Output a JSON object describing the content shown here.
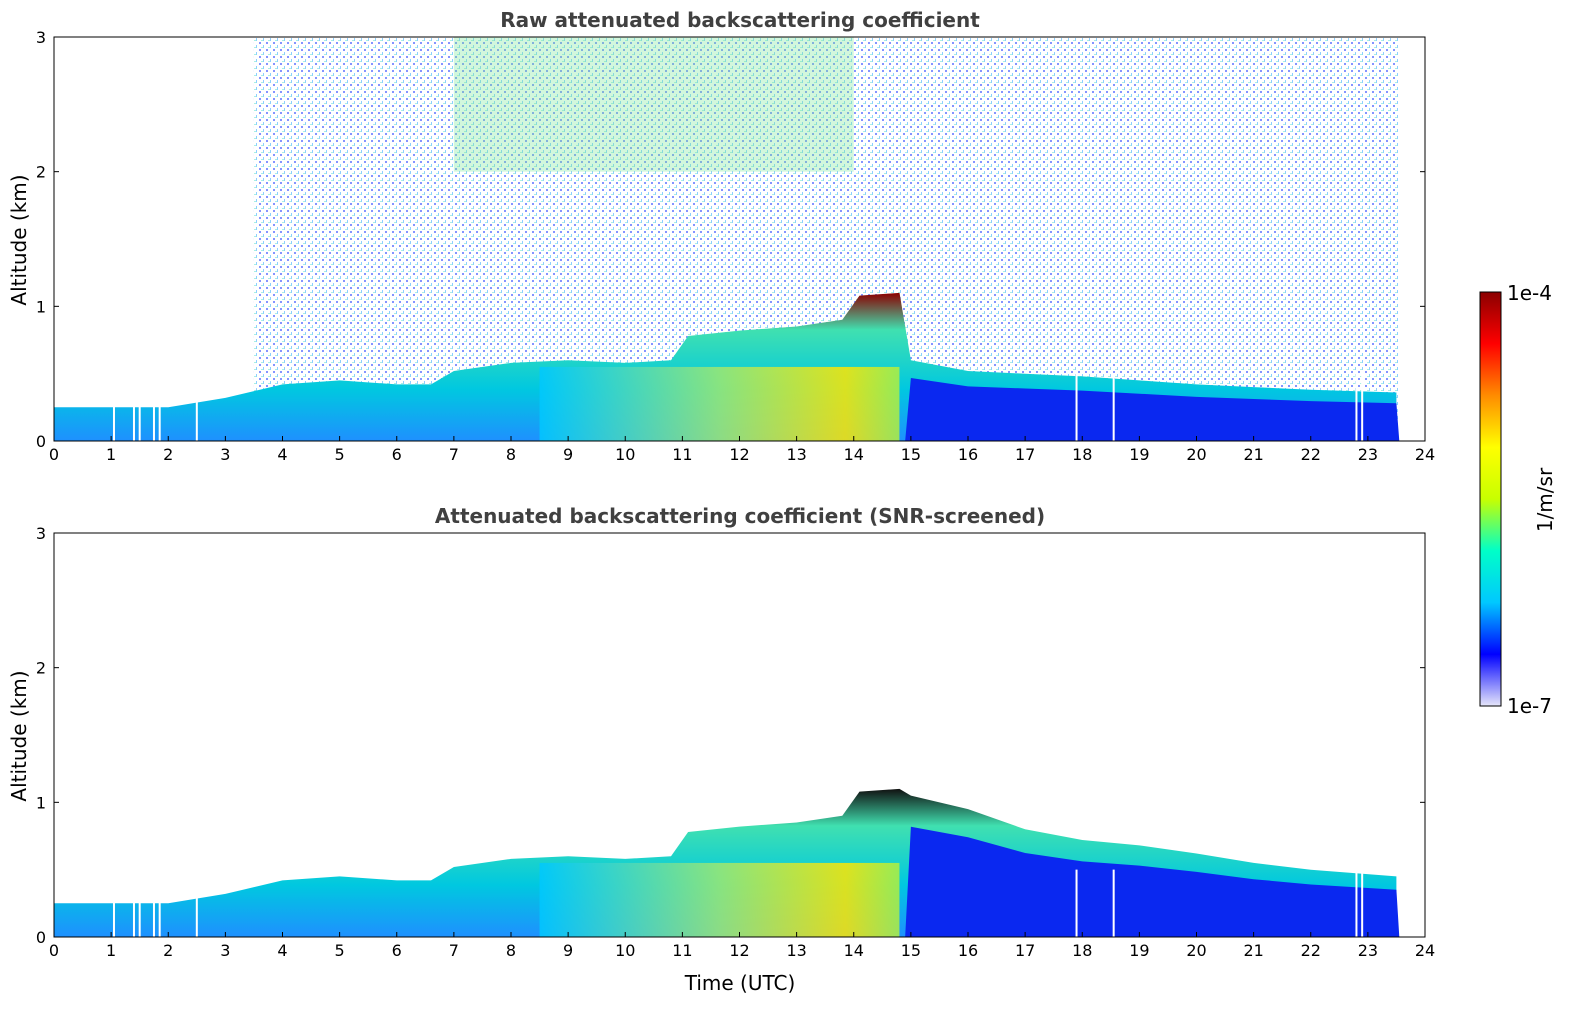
{
  "chart_data": [
    {
      "type": "heatmap",
      "title": "Raw attenuated backscattering coefficient",
      "xlabel": "",
      "ylabel": "Altitude (km)",
      "xlim": [
        0,
        24
      ],
      "ylim": [
        0,
        3
      ],
      "xticks": [
        "0",
        "1",
        "2",
        "3",
        "4",
        "5",
        "6",
        "7",
        "8",
        "9",
        "10",
        "11",
        "12",
        "13",
        "14",
        "15",
        "16",
        "17",
        "18",
        "19",
        "20",
        "21",
        "22",
        "23",
        "24"
      ],
      "yticks": [
        "0",
        "1",
        "2",
        "3"
      ],
      "screened": false,
      "data_end_hour": 23.55,
      "layer_top_km": [
        [
          0,
          0.25
        ],
        [
          1,
          0.25
        ],
        [
          2,
          0.25
        ],
        [
          3,
          0.32
        ],
        [
          4,
          0.42
        ],
        [
          5,
          0.45
        ],
        [
          6,
          0.42
        ],
        [
          6.6,
          0.42
        ],
        [
          7,
          0.52
        ],
        [
          8,
          0.58
        ],
        [
          9,
          0.6
        ],
        [
          10,
          0.58
        ],
        [
          10.8,
          0.6
        ],
        [
          11.1,
          0.78
        ],
        [
          12,
          0.82
        ],
        [
          13,
          0.85
        ],
        [
          13.8,
          0.9
        ],
        [
          14.1,
          1.08
        ],
        [
          14.8,
          1.1
        ],
        [
          15,
          0.6
        ],
        [
          16,
          0.52
        ],
        [
          17,
          0.5
        ],
        [
          18,
          0.48
        ],
        [
          19,
          0.45
        ],
        [
          20,
          0.42
        ],
        [
          21,
          0.4
        ],
        [
          22,
          0.38
        ],
        [
          23.5,
          0.36
        ]
      ]
    },
    {
      "type": "heatmap",
      "title": "Attenuated backscattering coefficient (SNR-screened)",
      "xlabel": "Time (UTC)",
      "ylabel": "Altitude (km)",
      "xlim": [
        0,
        24
      ],
      "ylim": [
        0,
        3
      ],
      "xticks": [
        "0",
        "1",
        "2",
        "3",
        "4",
        "5",
        "6",
        "7",
        "8",
        "9",
        "10",
        "11",
        "12",
        "13",
        "14",
        "15",
        "16",
        "17",
        "18",
        "19",
        "20",
        "21",
        "22",
        "23",
        "24"
      ],
      "yticks": [
        "0",
        "1",
        "2",
        "3"
      ],
      "screened": true,
      "data_end_hour": 23.55,
      "layer_top_km": [
        [
          0,
          0.25
        ],
        [
          1,
          0.25
        ],
        [
          2,
          0.25
        ],
        [
          3,
          0.32
        ],
        [
          4,
          0.42
        ],
        [
          5,
          0.45
        ],
        [
          6,
          0.42
        ],
        [
          6.6,
          0.42
        ],
        [
          7,
          0.52
        ],
        [
          8,
          0.58
        ],
        [
          9,
          0.6
        ],
        [
          10,
          0.58
        ],
        [
          10.8,
          0.6
        ],
        [
          11.1,
          0.78
        ],
        [
          12,
          0.82
        ],
        [
          13,
          0.85
        ],
        [
          13.8,
          0.9
        ],
        [
          14.1,
          1.08
        ],
        [
          14.8,
          1.1
        ],
        [
          15,
          1.05
        ],
        [
          16,
          0.95
        ],
        [
          17,
          0.8
        ],
        [
          18,
          0.72
        ],
        [
          19,
          0.68
        ],
        [
          20,
          0.62
        ],
        [
          21,
          0.55
        ],
        [
          22,
          0.5
        ],
        [
          23.5,
          0.45
        ]
      ]
    }
  ],
  "colorbar": {
    "label": "1/m/sr",
    "max_label": "1e-4",
    "min_label": "1e-7",
    "scale": "log",
    "colormap": [
      "#e6e6fa",
      "#0000ff",
      "#00c8ff",
      "#00ffc8",
      "#c8ff00",
      "#ffff00",
      "#ff8c00",
      "#ff0000",
      "#8b0000"
    ]
  }
}
